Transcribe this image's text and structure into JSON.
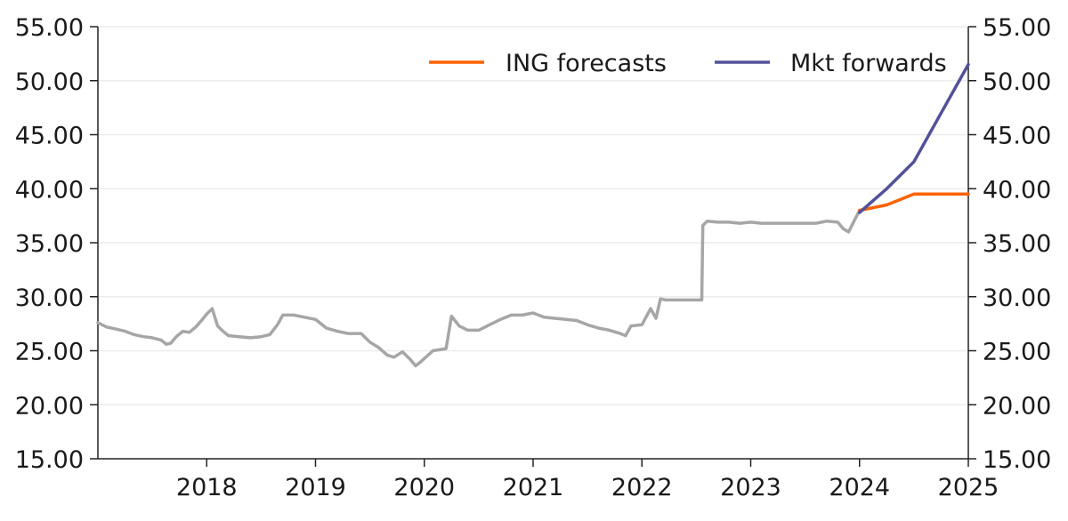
{
  "chart_data": {
    "type": "line",
    "title": "",
    "xlabel": "",
    "ylabel": "",
    "x_ticks": [
      "2018",
      "2019",
      "2020",
      "2021",
      "2022",
      "2023",
      "2024",
      "2025"
    ],
    "y_ticks_left": [
      "15.00",
      "20.00",
      "25.00",
      "30.00",
      "35.00",
      "40.00",
      "45.00",
      "50.00",
      "55.00"
    ],
    "y_ticks_right": [
      "15.00",
      "20.00",
      "25.00",
      "30.00",
      "35.00",
      "40.00",
      "45.00",
      "50.00",
      "55.00"
    ],
    "xlim": [
      2017.0,
      2025.0
    ],
    "ylim": [
      15,
      55
    ],
    "grid": "horizontal",
    "legend_position": "top-right",
    "series": [
      {
        "name": "",
        "color": "#a6a6a6",
        "points": [
          [
            2017.0,
            27.6
          ],
          [
            2017.08,
            27.2
          ],
          [
            2017.17,
            27.0
          ],
          [
            2017.25,
            26.8
          ],
          [
            2017.33,
            26.5
          ],
          [
            2017.42,
            26.3
          ],
          [
            2017.5,
            26.2
          ],
          [
            2017.58,
            26.0
          ],
          [
            2017.63,
            25.6
          ],
          [
            2017.67,
            25.7
          ],
          [
            2017.72,
            26.3
          ],
          [
            2017.78,
            26.8
          ],
          [
            2017.84,
            26.7
          ],
          [
            2017.9,
            27.2
          ],
          [
            2017.96,
            27.9
          ],
          [
            2018.0,
            28.4
          ],
          [
            2018.05,
            28.9
          ],
          [
            2018.1,
            27.3
          ],
          [
            2018.15,
            26.8
          ],
          [
            2018.2,
            26.4
          ],
          [
            2018.3,
            26.3
          ],
          [
            2018.4,
            26.2
          ],
          [
            2018.5,
            26.3
          ],
          [
            2018.58,
            26.5
          ],
          [
            2018.65,
            27.4
          ],
          [
            2018.7,
            28.3
          ],
          [
            2018.8,
            28.3
          ],
          [
            2018.9,
            28.1
          ],
          [
            2019.0,
            27.9
          ],
          [
            2019.05,
            27.5
          ],
          [
            2019.1,
            27.1
          ],
          [
            2019.2,
            26.8
          ],
          [
            2019.3,
            26.6
          ],
          [
            2019.42,
            26.6
          ],
          [
            2019.5,
            25.8
          ],
          [
            2019.58,
            25.3
          ],
          [
            2019.66,
            24.6
          ],
          [
            2019.72,
            24.4
          ],
          [
            2019.8,
            24.9
          ],
          [
            2019.87,
            24.2
          ],
          [
            2019.92,
            23.6
          ],
          [
            2019.97,
            24.0
          ],
          [
            2020.08,
            25.0
          ],
          [
            2020.2,
            25.2
          ],
          [
            2020.25,
            28.2
          ],
          [
            2020.32,
            27.3
          ],
          [
            2020.4,
            26.9
          ],
          [
            2020.5,
            26.9
          ],
          [
            2020.6,
            27.4
          ],
          [
            2020.7,
            27.9
          ],
          [
            2020.8,
            28.3
          ],
          [
            2020.9,
            28.3
          ],
          [
            2021.0,
            28.5
          ],
          [
            2021.1,
            28.1
          ],
          [
            2021.2,
            28.0
          ],
          [
            2021.3,
            27.9
          ],
          [
            2021.4,
            27.8
          ],
          [
            2021.5,
            27.4
          ],
          [
            2021.6,
            27.1
          ],
          [
            2021.7,
            26.9
          ],
          [
            2021.8,
            26.6
          ],
          [
            2021.85,
            26.4
          ],
          [
            2021.9,
            27.3
          ],
          [
            2022.0,
            27.4
          ],
          [
            2022.08,
            28.9
          ],
          [
            2022.13,
            28.0
          ],
          [
            2022.17,
            29.8
          ],
          [
            2022.22,
            29.7
          ],
          [
            2022.3,
            29.7
          ],
          [
            2022.4,
            29.7
          ],
          [
            2022.55,
            29.7
          ],
          [
            2022.56,
            36.6
          ],
          [
            2022.6,
            37.0
          ],
          [
            2022.7,
            36.9
          ],
          [
            2022.8,
            36.9
          ],
          [
            2022.9,
            36.8
          ],
          [
            2023.0,
            36.9
          ],
          [
            2023.1,
            36.8
          ],
          [
            2023.3,
            36.8
          ],
          [
            2023.5,
            36.8
          ],
          [
            2023.6,
            36.8
          ],
          [
            2023.7,
            37.0
          ],
          [
            2023.8,
            36.9
          ],
          [
            2023.85,
            36.3
          ],
          [
            2023.9,
            36.0
          ],
          [
            2023.95,
            37.0
          ],
          [
            2024.0,
            38.0
          ]
        ]
      },
      {
        "name": "ING forecasts",
        "color": "#ff6200",
        "points": [
          [
            2024.0,
            38.0
          ],
          [
            2024.25,
            38.5
          ],
          [
            2024.5,
            39.5
          ],
          [
            2024.75,
            39.5
          ],
          [
            2025.0,
            39.5
          ]
        ]
      },
      {
        "name": "Mkt forwards",
        "color": "#525199",
        "points": [
          [
            2024.0,
            37.8
          ],
          [
            2024.25,
            40.0
          ],
          [
            2024.5,
            42.5
          ],
          [
            2024.75,
            47.0
          ],
          [
            2025.0,
            51.5
          ]
        ]
      }
    ]
  }
}
